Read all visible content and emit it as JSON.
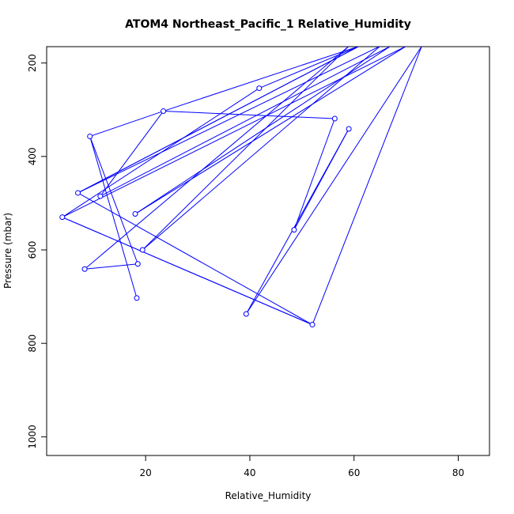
{
  "chart_data": {
    "type": "line",
    "title": "ATOM4 Northeast_Pacific_1 Relative_Humidity",
    "xlabel": "Relative_Humidity",
    "ylabel": "Pressure (mbar)",
    "xlim": [
      1,
      86
    ],
    "ylim": [
      1040,
      165
    ],
    "y_reversed": true,
    "x_ticks": [
      20,
      40,
      60,
      80
    ],
    "y_ticks": [
      200,
      400,
      600,
      800,
      1000
    ],
    "grid": false,
    "line_color": "#0000ff",
    "marker": "open-circle",
    "series": [
      {
        "points_visible": [
          [
            18.3,
            703
          ],
          [
            9.3,
            357
          ],
          [
            23.4,
            303
          ],
          [
            61,
            164
          ],
          [
            7,
            478
          ],
          [
            61,
            164
          ],
          [
            41.8,
            254
          ],
          [
            4,
            530
          ],
          [
            52,
            760
          ],
          [
            4,
            530
          ],
          [
            70,
            164
          ],
          [
            18,
            523
          ],
          [
            67,
            164
          ],
          [
            11.3,
            485
          ],
          [
            23.4,
            303
          ],
          [
            56.3,
            319
          ],
          [
            48.5,
            557
          ],
          [
            59,
            341
          ],
          [
            39.3,
            737
          ],
          [
            73,
            164
          ],
          [
            52,
            760
          ],
          [
            7,
            478
          ],
          [
            65,
            164
          ],
          [
            19.4,
            600
          ],
          [
            59,
            164
          ],
          [
            8.3,
            641
          ],
          [
            18.5,
            630
          ],
          [
            9.3,
            357
          ]
        ]
      }
    ],
    "markers_visible": [
      [
        9.3,
        357
      ],
      [
        23.4,
        303
      ],
      [
        41.8,
        254
      ],
      [
        56.3,
        319
      ],
      [
        59,
        341
      ],
      [
        7,
        478
      ],
      [
        11.3,
        485
      ],
      [
        4,
        530
      ],
      [
        18,
        523
      ],
      [
        48.5,
        557
      ],
      [
        19.4,
        600
      ],
      [
        8.3,
        641
      ],
      [
        18.5,
        630
      ],
      [
        18.3,
        703
      ],
      [
        39.3,
        737
      ],
      [
        52,
        760
      ]
    ]
  }
}
